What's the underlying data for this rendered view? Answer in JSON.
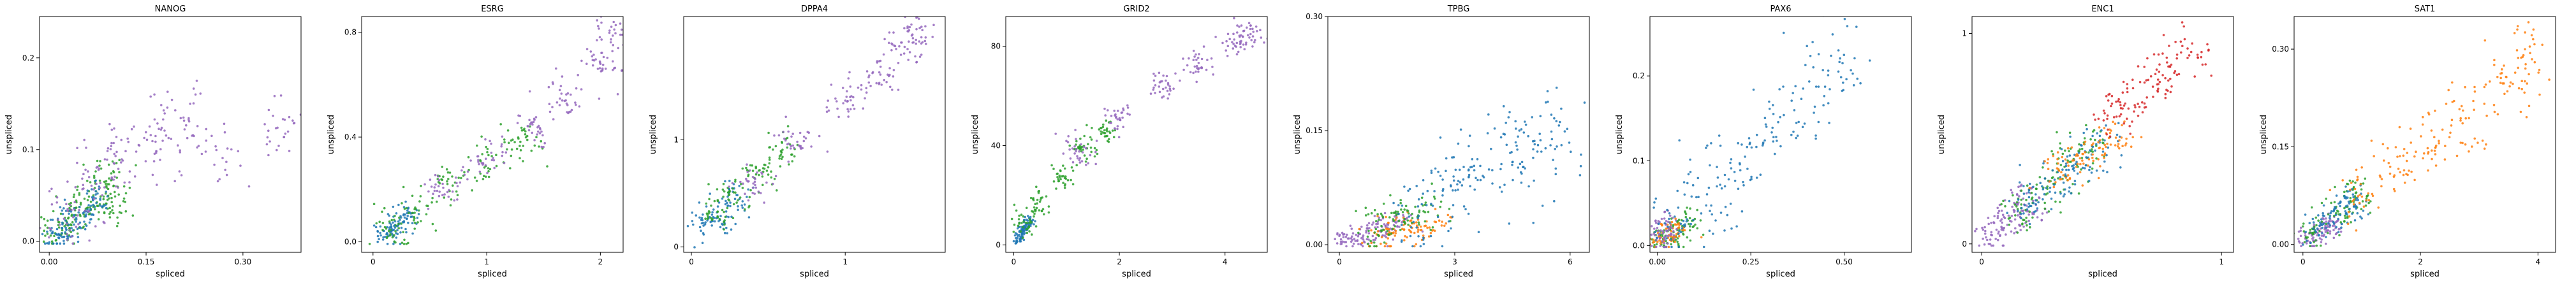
{
  "chart_data": [
    {
      "type": "scatter",
      "title": "NANOG",
      "xlabel": "spliced",
      "ylabel": "unspliced",
      "xlim": [
        -0.015,
        0.39
      ],
      "ylim": [
        -0.012,
        0.245
      ],
      "xticks": [
        {
          "v": 0.0,
          "label": "0.00"
        },
        {
          "v": 0.15,
          "label": "0.15"
        },
        {
          "v": 0.3,
          "label": "0.30"
        }
      ],
      "yticks": [
        {
          "v": 0.0,
          "label": "0.0"
        },
        {
          "v": 0.1,
          "label": "0.1"
        },
        {
          "v": 0.2,
          "label": "0.2"
        }
      ],
      "series": [
        {
          "color": "#2ca02c",
          "values": [
            [
              0.01,
              0.01
            ],
            [
              0.03,
              0.02
            ],
            [
              0.05,
              0.04
            ],
            [
              0.07,
              0.05
            ],
            [
              0.09,
              0.07
            ],
            [
              0.1,
              0.04
            ]
          ],
          "spread": [
            0.015,
            0.01
          ]
        },
        {
          "color": "#1f77b4",
          "values": [
            [
              0.01,
              0.005
            ],
            [
              0.03,
              0.015
            ],
            [
              0.05,
              0.03
            ],
            [
              0.07,
              0.045
            ]
          ],
          "spread": [
            0.012,
            0.008
          ]
        },
        {
          "color": "#9467bd",
          "values": [
            [
              0.02,
              0.02
            ],
            [
              0.06,
              0.06
            ],
            [
              0.1,
              0.09
            ],
            [
              0.15,
              0.11
            ],
            [
              0.2,
              0.13
            ],
            [
              0.25,
              0.1
            ],
            [
              0.36,
              0.13
            ]
          ],
          "spread": [
            0.025,
            0.02
          ]
        }
      ]
    },
    {
      "type": "scatter",
      "title": "ESRG",
      "xlabel": "spliced",
      "ylabel": "unspliced",
      "xlim": [
        -0.1,
        2.2
      ],
      "ylim": [
        -0.04,
        0.86
      ],
      "xticks": [
        {
          "v": 0,
          "label": "0"
        },
        {
          "v": 1,
          "label": "1"
        },
        {
          "v": 2,
          "label": "2"
        }
      ],
      "yticks": [
        {
          "v": 0.0,
          "label": "0.0"
        },
        {
          "v": 0.4,
          "label": "0.4"
        },
        {
          "v": 0.8,
          "label": "0.8"
        }
      ],
      "series": [
        {
          "color": "#1f77b4",
          "values": [
            [
              0.1,
              0.03
            ],
            [
              0.2,
              0.06
            ],
            [
              0.3,
              0.1
            ]
          ],
          "spread": [
            0.06,
            0.025
          ]
        },
        {
          "color": "#2ca02c",
          "values": [
            [
              0.15,
              0.04
            ],
            [
              0.4,
              0.12
            ],
            [
              0.7,
              0.22
            ],
            [
              1.0,
              0.3
            ],
            [
              1.3,
              0.38
            ]
          ],
          "spread": [
            0.1,
            0.04
          ]
        },
        {
          "color": "#9467bd",
          "values": [
            [
              0.6,
              0.2
            ],
            [
              1.0,
              0.32
            ],
            [
              1.4,
              0.45
            ],
            [
              1.7,
              0.55
            ],
            [
              2.0,
              0.68
            ],
            [
              2.1,
              0.8
            ]
          ],
          "spread": [
            0.09,
            0.04
          ]
        }
      ]
    },
    {
      "type": "scatter",
      "title": "DPPA4",
      "xlabel": "spliced",
      "ylabel": "unspliced",
      "xlim": [
        -0.05,
        1.65
      ],
      "ylim": [
        -0.05,
        2.15
      ],
      "xticks": [
        {
          "v": 0,
          "label": "0"
        },
        {
          "v": 1,
          "label": "1"
        }
      ],
      "yticks": [
        {
          "v": 0,
          "label": "0"
        },
        {
          "v": 1,
          "label": "1"
        }
      ],
      "series": [
        {
          "color": "#1f77b4",
          "values": [
            [
              0.1,
              0.2
            ],
            [
              0.2,
              0.3
            ],
            [
              0.3,
              0.45
            ]
          ],
          "spread": [
            0.06,
            0.08
          ]
        },
        {
          "color": "#2ca02c",
          "values": [
            [
              0.15,
              0.3
            ],
            [
              0.3,
              0.5
            ],
            [
              0.45,
              0.7
            ],
            [
              0.6,
              0.9
            ]
          ],
          "spread": [
            0.06,
            0.08
          ]
        },
        {
          "color": "#9467bd",
          "values": [
            [
              0.4,
              0.6
            ],
            [
              0.7,
              1.0
            ],
            [
              1.0,
              1.35
            ],
            [
              1.2,
              1.6
            ],
            [
              1.4,
              1.85
            ],
            [
              1.45,
              2.0
            ]
          ],
          "spread": [
            0.07,
            0.09
          ]
        }
      ]
    },
    {
      "type": "scatter",
      "title": "GRID2",
      "xlabel": "spliced",
      "ylabel": "unspliced",
      "xlim": [
        -0.15,
        4.8
      ],
      "ylim": [
        -3,
        92
      ],
      "xticks": [
        {
          "v": 0,
          "label": "0"
        },
        {
          "v": 2,
          "label": "2"
        },
        {
          "v": 4,
          "label": "4"
        }
      ],
      "yticks": [
        {
          "v": 0,
          "label": "0"
        },
        {
          "v": 40,
          "label": "40"
        },
        {
          "v": 80,
          "label": "80"
        }
      ],
      "series": [
        {
          "color": "#1f77b4",
          "values": [
            [
              0.1,
              3
            ],
            [
              0.2,
              6
            ],
            [
              0.3,
              9
            ]
          ],
          "spread": [
            0.06,
            1.5
          ]
        },
        {
          "color": "#2ca02c",
          "values": [
            [
              0.2,
              8
            ],
            [
              0.5,
              17
            ],
            [
              0.9,
              28
            ],
            [
              1.3,
              38
            ],
            [
              1.7,
              45
            ]
          ],
          "spread": [
            0.12,
            2.5
          ]
        },
        {
          "color": "#9467bd",
          "values": [
            [
              1.2,
              38
            ],
            [
              2.0,
              52
            ],
            [
              2.8,
              64
            ],
            [
              3.5,
              73
            ],
            [
              4.2,
              82
            ],
            [
              4.5,
              86
            ]
          ],
          "spread": [
            0.15,
            3
          ]
        }
      ]
    },
    {
      "type": "scatter",
      "title": "TPBG",
      "xlabel": "spliced",
      "ylabel": "unspliced",
      "xlim": [
        -0.3,
        6.5
      ],
      "ylim": [
        -0.01,
        0.3
      ],
      "xticks": [
        {
          "v": 0,
          "label": "0"
        },
        {
          "v": 3,
          "label": "3"
        },
        {
          "v": 6,
          "label": "6"
        }
      ],
      "yticks": [
        {
          "v": 0.0,
          "label": "0.00"
        },
        {
          "v": 0.15,
          "label": "0.15"
        },
        {
          "v": 0.3,
          "label": "0.30"
        }
      ],
      "series": [
        {
          "color": "#9467bd",
          "values": [
            [
              0.2,
              0.005
            ],
            [
              0.6,
              0.01
            ],
            [
              1.0,
              0.02
            ],
            [
              1.5,
              0.03
            ]
          ],
          "spread": [
            0.25,
            0.008
          ]
        },
        {
          "color": "#ff7f0e",
          "values": [
            [
              1.2,
              0.01
            ],
            [
              1.8,
              0.02
            ],
            [
              2.4,
              0.025
            ]
          ],
          "spread": [
            0.3,
            0.01
          ]
        },
        {
          "color": "#2ca02c",
          "values": [
            [
              1.0,
              0.02
            ],
            [
              1.6,
              0.035
            ],
            [
              2.2,
              0.04
            ]
          ],
          "spread": [
            0.3,
            0.012
          ]
        },
        {
          "color": "#1f77b4",
          "values": [
            [
              2.0,
              0.04
            ],
            [
              2.8,
              0.07
            ],
            [
              3.5,
              0.09
            ],
            [
              4.2,
              0.11
            ],
            [
              5.0,
              0.12
            ],
            [
              5.6,
              0.15
            ]
          ],
          "spread": [
            0.35,
            0.03
          ]
        }
      ]
    },
    {
      "type": "scatter",
      "title": "PAX6",
      "xlabel": "spliced",
      "ylabel": "unspliced",
      "xlim": [
        -0.02,
        0.68
      ],
      "ylim": [
        -0.008,
        0.27
      ],
      "xticks": [
        {
          "v": 0.0,
          "label": "0.00"
        },
        {
          "v": 0.25,
          "label": "0.25"
        },
        {
          "v": 0.5,
          "label": "0.50"
        }
      ],
      "yticks": [
        {
          "v": 0.0,
          "label": "0.0"
        },
        {
          "v": 0.1,
          "label": "0.1"
        },
        {
          "v": 0.2,
          "label": "0.2"
        }
      ],
      "series": [
        {
          "color": "#2ca02c",
          "values": [
            [
              0.01,
              0.005
            ],
            [
              0.04,
              0.015
            ],
            [
              0.08,
              0.025
            ]
          ],
          "spread": [
            0.02,
            0.01
          ]
        },
        {
          "color": "#ff7f0e",
          "values": [
            [
              0.02,
              0.01
            ],
            [
              0.05,
              0.02
            ]
          ],
          "spread": [
            0.02,
            0.008
          ]
        },
        {
          "color": "#9467bd",
          "values": [
            [
              0.01,
              0.01
            ],
            [
              0.03,
              0.02
            ]
          ],
          "spread": [
            0.015,
            0.01
          ]
        },
        {
          "color": "#1f77b4",
          "values": [
            [
              0.05,
              0.03
            ],
            [
              0.12,
              0.06
            ],
            [
              0.2,
              0.09
            ],
            [
              0.3,
              0.13
            ],
            [
              0.4,
              0.17
            ],
            [
              0.5,
              0.22
            ]
          ],
          "spread": [
            0.04,
            0.025
          ]
        }
      ]
    },
    {
      "type": "scatter",
      "title": "ENC1",
      "xlabel": "spliced",
      "ylabel": "unspliced",
      "xlim": [
        -0.04,
        1.05
      ],
      "ylim": [
        -0.04,
        1.08
      ],
      "xticks": [
        {
          "v": 0,
          "label": "0"
        },
        {
          "v": 1,
          "label": "1"
        }
      ],
      "yticks": [
        {
          "v": 0,
          "label": "0"
        },
        {
          "v": 1,
          "label": "1"
        }
      ],
      "series": [
        {
          "color": "#9467bd",
          "values": [
            [
              0.05,
              0.05
            ],
            [
              0.1,
              0.1
            ],
            [
              0.15,
              0.15
            ],
            [
              0.2,
              0.2
            ]
          ],
          "spread": [
            0.04,
            0.04
          ]
        },
        {
          "color": "#2ca02c",
          "values": [
            [
              0.15,
              0.15
            ],
            [
              0.25,
              0.25
            ],
            [
              0.35,
              0.35
            ],
            [
              0.45,
              0.45
            ]
          ],
          "spread": [
            0.05,
            0.05
          ]
        },
        {
          "color": "#1f77b4",
          "values": [
            [
              0.2,
              0.2
            ],
            [
              0.3,
              0.3
            ],
            [
              0.4,
              0.38
            ],
            [
              0.5,
              0.45
            ]
          ],
          "spread": [
            0.05,
            0.05
          ]
        },
        {
          "color": "#ff7f0e",
          "values": [
            [
              0.35,
              0.35
            ],
            [
              0.45,
              0.42
            ],
            [
              0.55,
              0.5
            ]
          ],
          "spread": [
            0.05,
            0.05
          ]
        },
        {
          "color": "#d62728",
          "values": [
            [
              0.55,
              0.6
            ],
            [
              0.65,
              0.7
            ],
            [
              0.75,
              0.8
            ],
            [
              0.85,
              0.9
            ]
          ],
          "spread": [
            0.05,
            0.06
          ]
        }
      ]
    },
    {
      "type": "scatter",
      "title": "SAT1",
      "xlabel": "spliced",
      "ylabel": "unspliced",
      "xlim": [
        -0.15,
        4.3
      ],
      "ylim": [
        -0.012,
        0.35
      ],
      "xticks": [
        {
          "v": 0,
          "label": "0"
        },
        {
          "v": 2,
          "label": "2"
        },
        {
          "v": 4,
          "label": "4"
        }
      ],
      "yticks": [
        {
          "v": 0.0,
          "label": "0.00"
        },
        {
          "v": 0.15,
          "label": "0.15"
        },
        {
          "v": 0.3,
          "label": "0.30"
        }
      ],
      "series": [
        {
          "color": "#9467bd",
          "values": [
            [
              0.1,
              0.01
            ],
            [
              0.3,
              0.02
            ],
            [
              0.5,
              0.03
            ]
          ],
          "spread": [
            0.1,
            0.01
          ]
        },
        {
          "color": "#2ca02c",
          "values": [
            [
              0.2,
              0.02
            ],
            [
              0.6,
              0.05
            ],
            [
              1.0,
              0.08
            ]
          ],
          "spread": [
            0.15,
            0.015
          ]
        },
        {
          "color": "#1f77b4",
          "values": [
            [
              0.3,
              0.03
            ],
            [
              0.6,
              0.05
            ],
            [
              0.9,
              0.07
            ]
          ],
          "spread": [
            0.15,
            0.015
          ]
        },
        {
          "color": "#ff7f0e",
          "values": [
            [
              1.0,
              0.08
            ],
            [
              1.6,
              0.12
            ],
            [
              2.2,
              0.16
            ],
            [
              2.8,
              0.2
            ],
            [
              3.4,
              0.24
            ],
            [
              3.8,
              0.28
            ]
          ],
          "spread": [
            0.2,
            0.025
          ]
        }
      ]
    }
  ]
}
